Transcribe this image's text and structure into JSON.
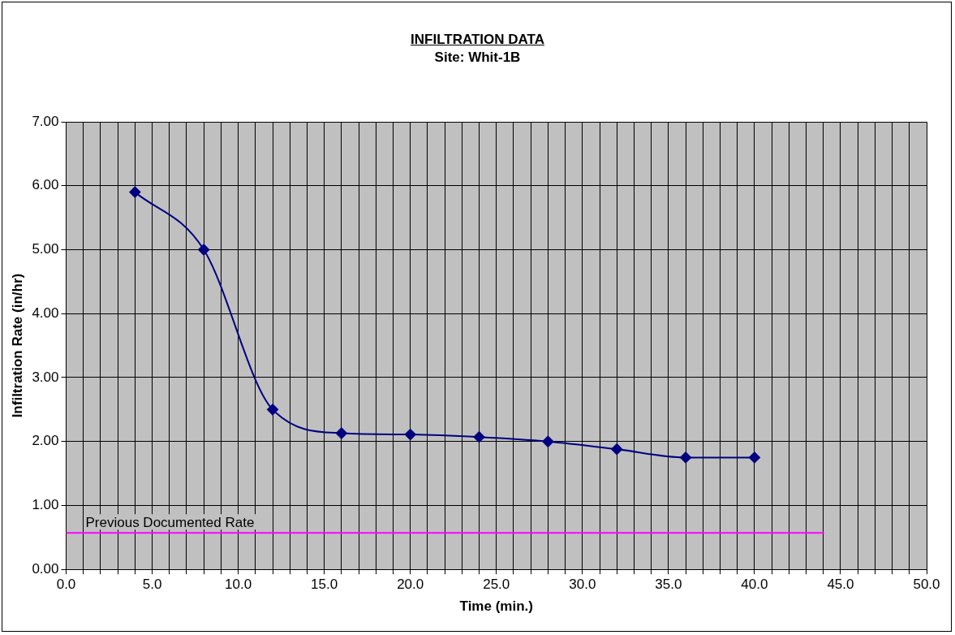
{
  "chart_data": {
    "type": "line",
    "title": "INFILTRATION DATA",
    "subtitle": "Site: Whit-1B",
    "xlabel": "Time (min.)",
    "ylabel": "Infiltration Rate (in/hr)",
    "series": [
      {
        "x": [
          4,
          8,
          12,
          16,
          20,
          24,
          28,
          32,
          36,
          40
        ],
        "values": [
          5.9,
          5.0,
          2.5,
          2.13,
          2.11,
          2.07,
          2.0,
          1.88,
          1.75,
          1.75
        ],
        "color": "#000080",
        "marker": "diamond"
      },
      {
        "name": "Previous Documented Rate",
        "x": [
          0,
          44
        ],
        "values": [
          0.57,
          0.57
        ],
        "color": "#ff00ff",
        "marker": "none"
      }
    ],
    "xlim": [
      0,
      50
    ],
    "ylim": [
      0,
      7
    ],
    "xticks": [
      {
        "value": 0,
        "label": "0.0"
      },
      {
        "value": 1,
        "label": null
      },
      {
        "value": 2,
        "label": null
      },
      {
        "value": 3,
        "label": null
      },
      {
        "value": 4,
        "label": null
      },
      {
        "value": 5,
        "label": "5.0"
      },
      {
        "value": 6,
        "label": null
      },
      {
        "value": 7,
        "label": null
      },
      {
        "value": 8,
        "label": null
      },
      {
        "value": 9,
        "label": null
      },
      {
        "value": 10,
        "label": "10.0"
      },
      {
        "value": 11,
        "label": null
      },
      {
        "value": 12,
        "label": null
      },
      {
        "value": 13,
        "label": null
      },
      {
        "value": 14,
        "label": null
      },
      {
        "value": 15,
        "label": "15.0"
      },
      {
        "value": 16,
        "label": null
      },
      {
        "value": 17,
        "label": null
      },
      {
        "value": 18,
        "label": null
      },
      {
        "value": 19,
        "label": null
      },
      {
        "value": 20,
        "label": "20.0"
      },
      {
        "value": 21,
        "label": null
      },
      {
        "value": 22,
        "label": null
      },
      {
        "value": 23,
        "label": null
      },
      {
        "value": 24,
        "label": null
      },
      {
        "value": 25,
        "label": "25.0"
      },
      {
        "value": 26,
        "label": null
      },
      {
        "value": 27,
        "label": null
      },
      {
        "value": 28,
        "label": null
      },
      {
        "value": 29,
        "label": null
      },
      {
        "value": 30,
        "label": "30.0"
      },
      {
        "value": 31,
        "label": null
      },
      {
        "value": 32,
        "label": null
      },
      {
        "value": 33,
        "label": null
      },
      {
        "value": 34,
        "label": null
      },
      {
        "value": 35,
        "label": "35.0"
      },
      {
        "value": 36,
        "label": null
      },
      {
        "value": 37,
        "label": null
      },
      {
        "value": 38,
        "label": null
      },
      {
        "value": 39,
        "label": null
      },
      {
        "value": 40,
        "label": "40.0"
      },
      {
        "value": 41,
        "label": null
      },
      {
        "value": 42,
        "label": null
      },
      {
        "value": 43,
        "label": null
      },
      {
        "value": 44,
        "label": null
      },
      {
        "value": 45,
        "label": "45.0"
      },
      {
        "value": 46,
        "label": null
      },
      {
        "value": 47,
        "label": null
      },
      {
        "value": 48,
        "label": null
      },
      {
        "value": 49,
        "label": null
      },
      {
        "value": 50,
        "label": "50.0"
      }
    ],
    "yticks": [
      {
        "value": 0,
        "label": "0.00"
      },
      {
        "value": 1,
        "label": "1.00"
      },
      {
        "value": 2,
        "label": "2.00"
      },
      {
        "value": 3,
        "label": "3.00"
      },
      {
        "value": 4,
        "label": "4.00"
      },
      {
        "value": 5,
        "label": "5.00"
      },
      {
        "value": 6,
        "label": "6.00"
      },
      {
        "value": 7,
        "label": "7.00"
      }
    ],
    "grid": true,
    "legend": false,
    "line_style": "solid"
  }
}
